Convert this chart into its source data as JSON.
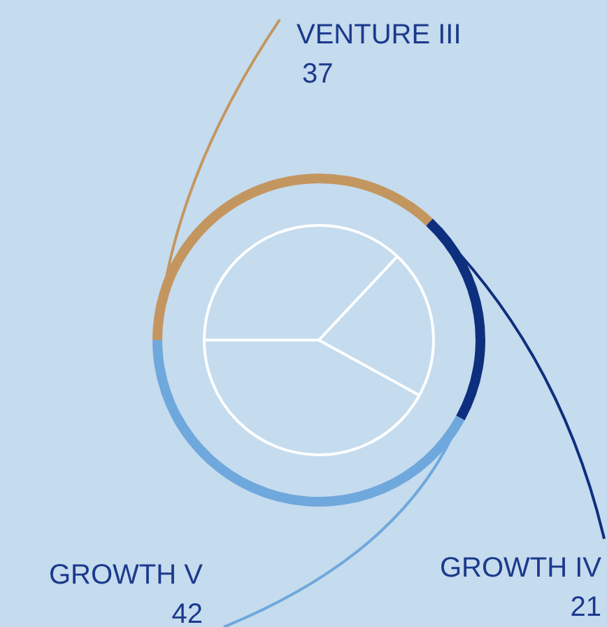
{
  "chart_data": {
    "type": "donut",
    "categories": [
      "VENTURE III",
      "GROWTH IV",
      "GROWTH V"
    ],
    "values": [
      37,
      21,
      42
    ],
    "colors": [
      "#c4965f",
      "#0d2f7e",
      "#6fa8dc"
    ],
    "data_labels": true
  }
}
